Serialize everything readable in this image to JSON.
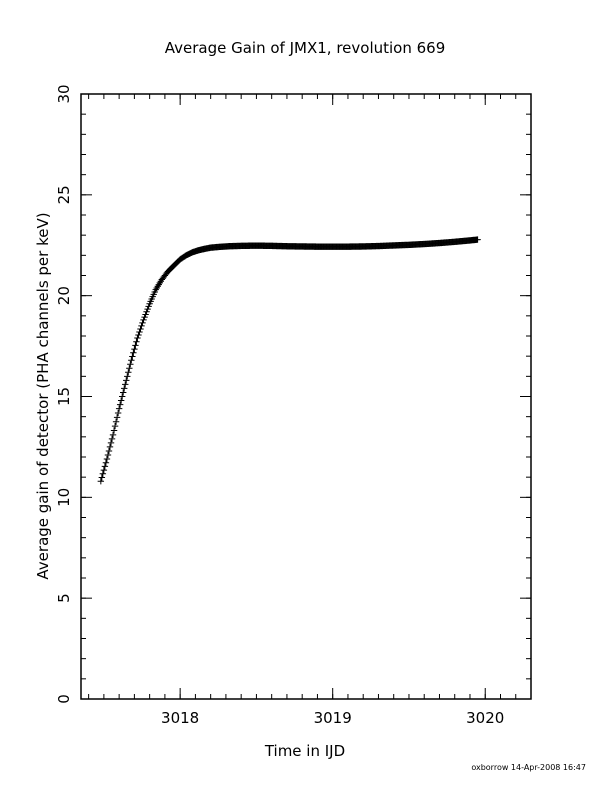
{
  "chart_data": {
    "type": "scatter",
    "title": "Average Gain of JMX1, revolution 669",
    "xlabel": "Time in IJD",
    "ylabel": "Average gain of detector (PHA channels per keV)",
    "footer": "oxborrow 14-Apr-2008 16:47",
    "xlim": [
      3017.35,
      3020.3
    ],
    "ylim": [
      0,
      30
    ],
    "x_ticks": [
      3018,
      3019,
      3020
    ],
    "x_tick_labels": [
      "3018",
      "3019",
      "3020"
    ],
    "y_ticks": [
      0,
      5,
      10,
      15,
      20,
      25,
      30
    ],
    "y_tick_labels": [
      "0",
      "5",
      "10",
      "15",
      "20",
      "25",
      "30"
    ],
    "x_minor_step": 0.1,
    "y_minor_step": 1,
    "marker": "+",
    "grid": false,
    "series": [
      {
        "color": "#000000",
        "x": [
          3017.48,
          3017.52,
          3017.56,
          3017.6,
          3017.64,
          3017.68,
          3017.72,
          3017.76,
          3017.8,
          3017.84,
          3017.88,
          3017.92,
          3017.96,
          3018.0,
          3018.04,
          3018.08,
          3018.12,
          3018.16,
          3018.2,
          3018.26,
          3018.32,
          3018.4,
          3018.5,
          3018.6,
          3018.7,
          3018.8,
          3018.9,
          3019.0,
          3019.1,
          3019.2,
          3019.3,
          3019.4,
          3019.5,
          3019.6,
          3019.7,
          3019.8,
          3019.9,
          3019.95
        ],
        "y": [
          10.8,
          11.9,
          13.1,
          14.4,
          15.6,
          16.8,
          17.9,
          18.8,
          19.6,
          20.3,
          20.8,
          21.2,
          21.5,
          21.8,
          22.0,
          22.15,
          22.25,
          22.32,
          22.38,
          22.42,
          22.45,
          22.47,
          22.48,
          22.47,
          22.45,
          22.44,
          22.43,
          22.43,
          22.43,
          22.44,
          22.46,
          22.49,
          22.52,
          22.56,
          22.61,
          22.67,
          22.74,
          22.78
        ]
      }
    ]
  }
}
